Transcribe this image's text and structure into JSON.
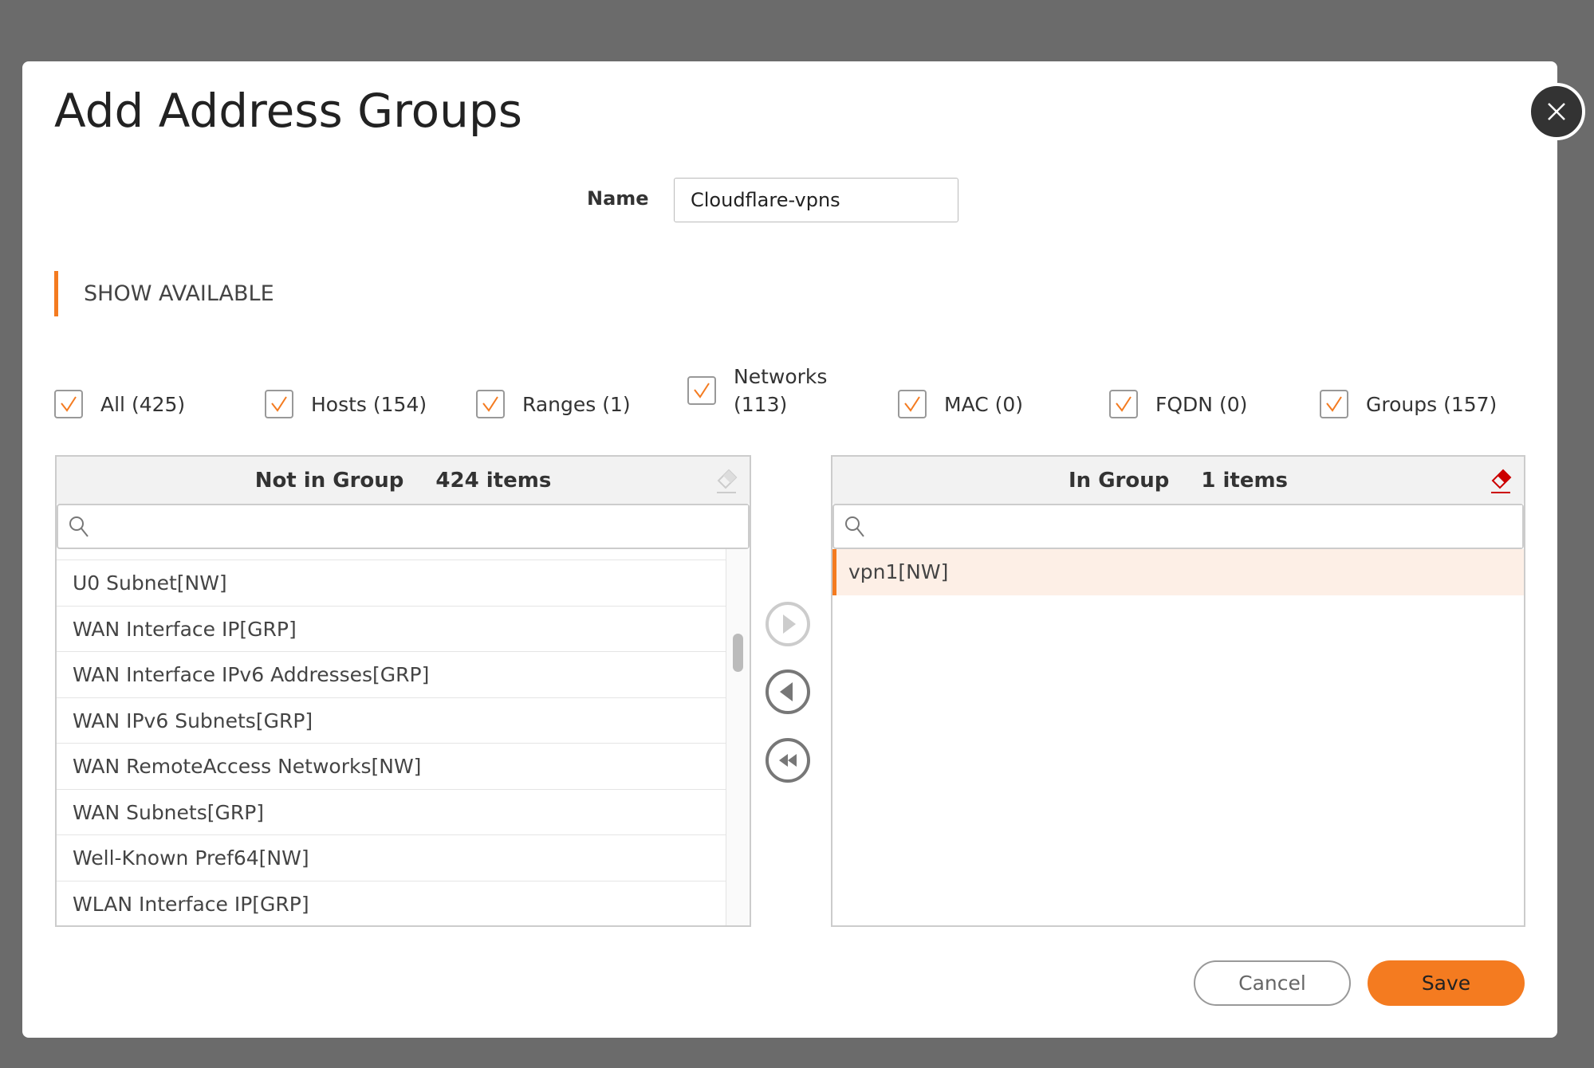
{
  "dialog": {
    "title": "Add Address Groups"
  },
  "name": {
    "label": "Name",
    "value": "Cloudflare-vpns"
  },
  "section": {
    "label": "SHOW AVAILABLE"
  },
  "filters": [
    {
      "label": "All (425)",
      "checked": true
    },
    {
      "label": "Hosts (154)",
      "checked": true
    },
    {
      "label": "Ranges (1)",
      "checked": true
    },
    {
      "label": "Networks",
      "label2": "(113)",
      "checked": true
    },
    {
      "label": "MAC (0)",
      "checked": true
    },
    {
      "label": "FQDN (0)",
      "checked": true
    },
    {
      "label": "Groups (157)",
      "checked": true
    }
  ],
  "left_panel": {
    "title": "Not in Group",
    "count": "424 items",
    "search_placeholder": "",
    "items": [
      "U0 Subnet[NW]",
      "WAN Interface IP[GRP]",
      "WAN Interface IPv6 Addresses[GRP]",
      "WAN IPv6 Subnets[GRP]",
      "WAN RemoteAccess Networks[NW]",
      "WAN Subnets[GRP]",
      "Well-Known Pref64[NW]",
      "WLAN Interface IP[GRP]"
    ]
  },
  "right_panel": {
    "title": "In Group",
    "count": "1 items",
    "search_placeholder": "",
    "items": [
      "vpn1[NW]"
    ]
  },
  "buttons": {
    "cancel": "Cancel",
    "save": "Save"
  },
  "colors": {
    "accent": "#f47b20",
    "eraser_active": "#cc0000",
    "selected_row": "#fdefe6"
  }
}
